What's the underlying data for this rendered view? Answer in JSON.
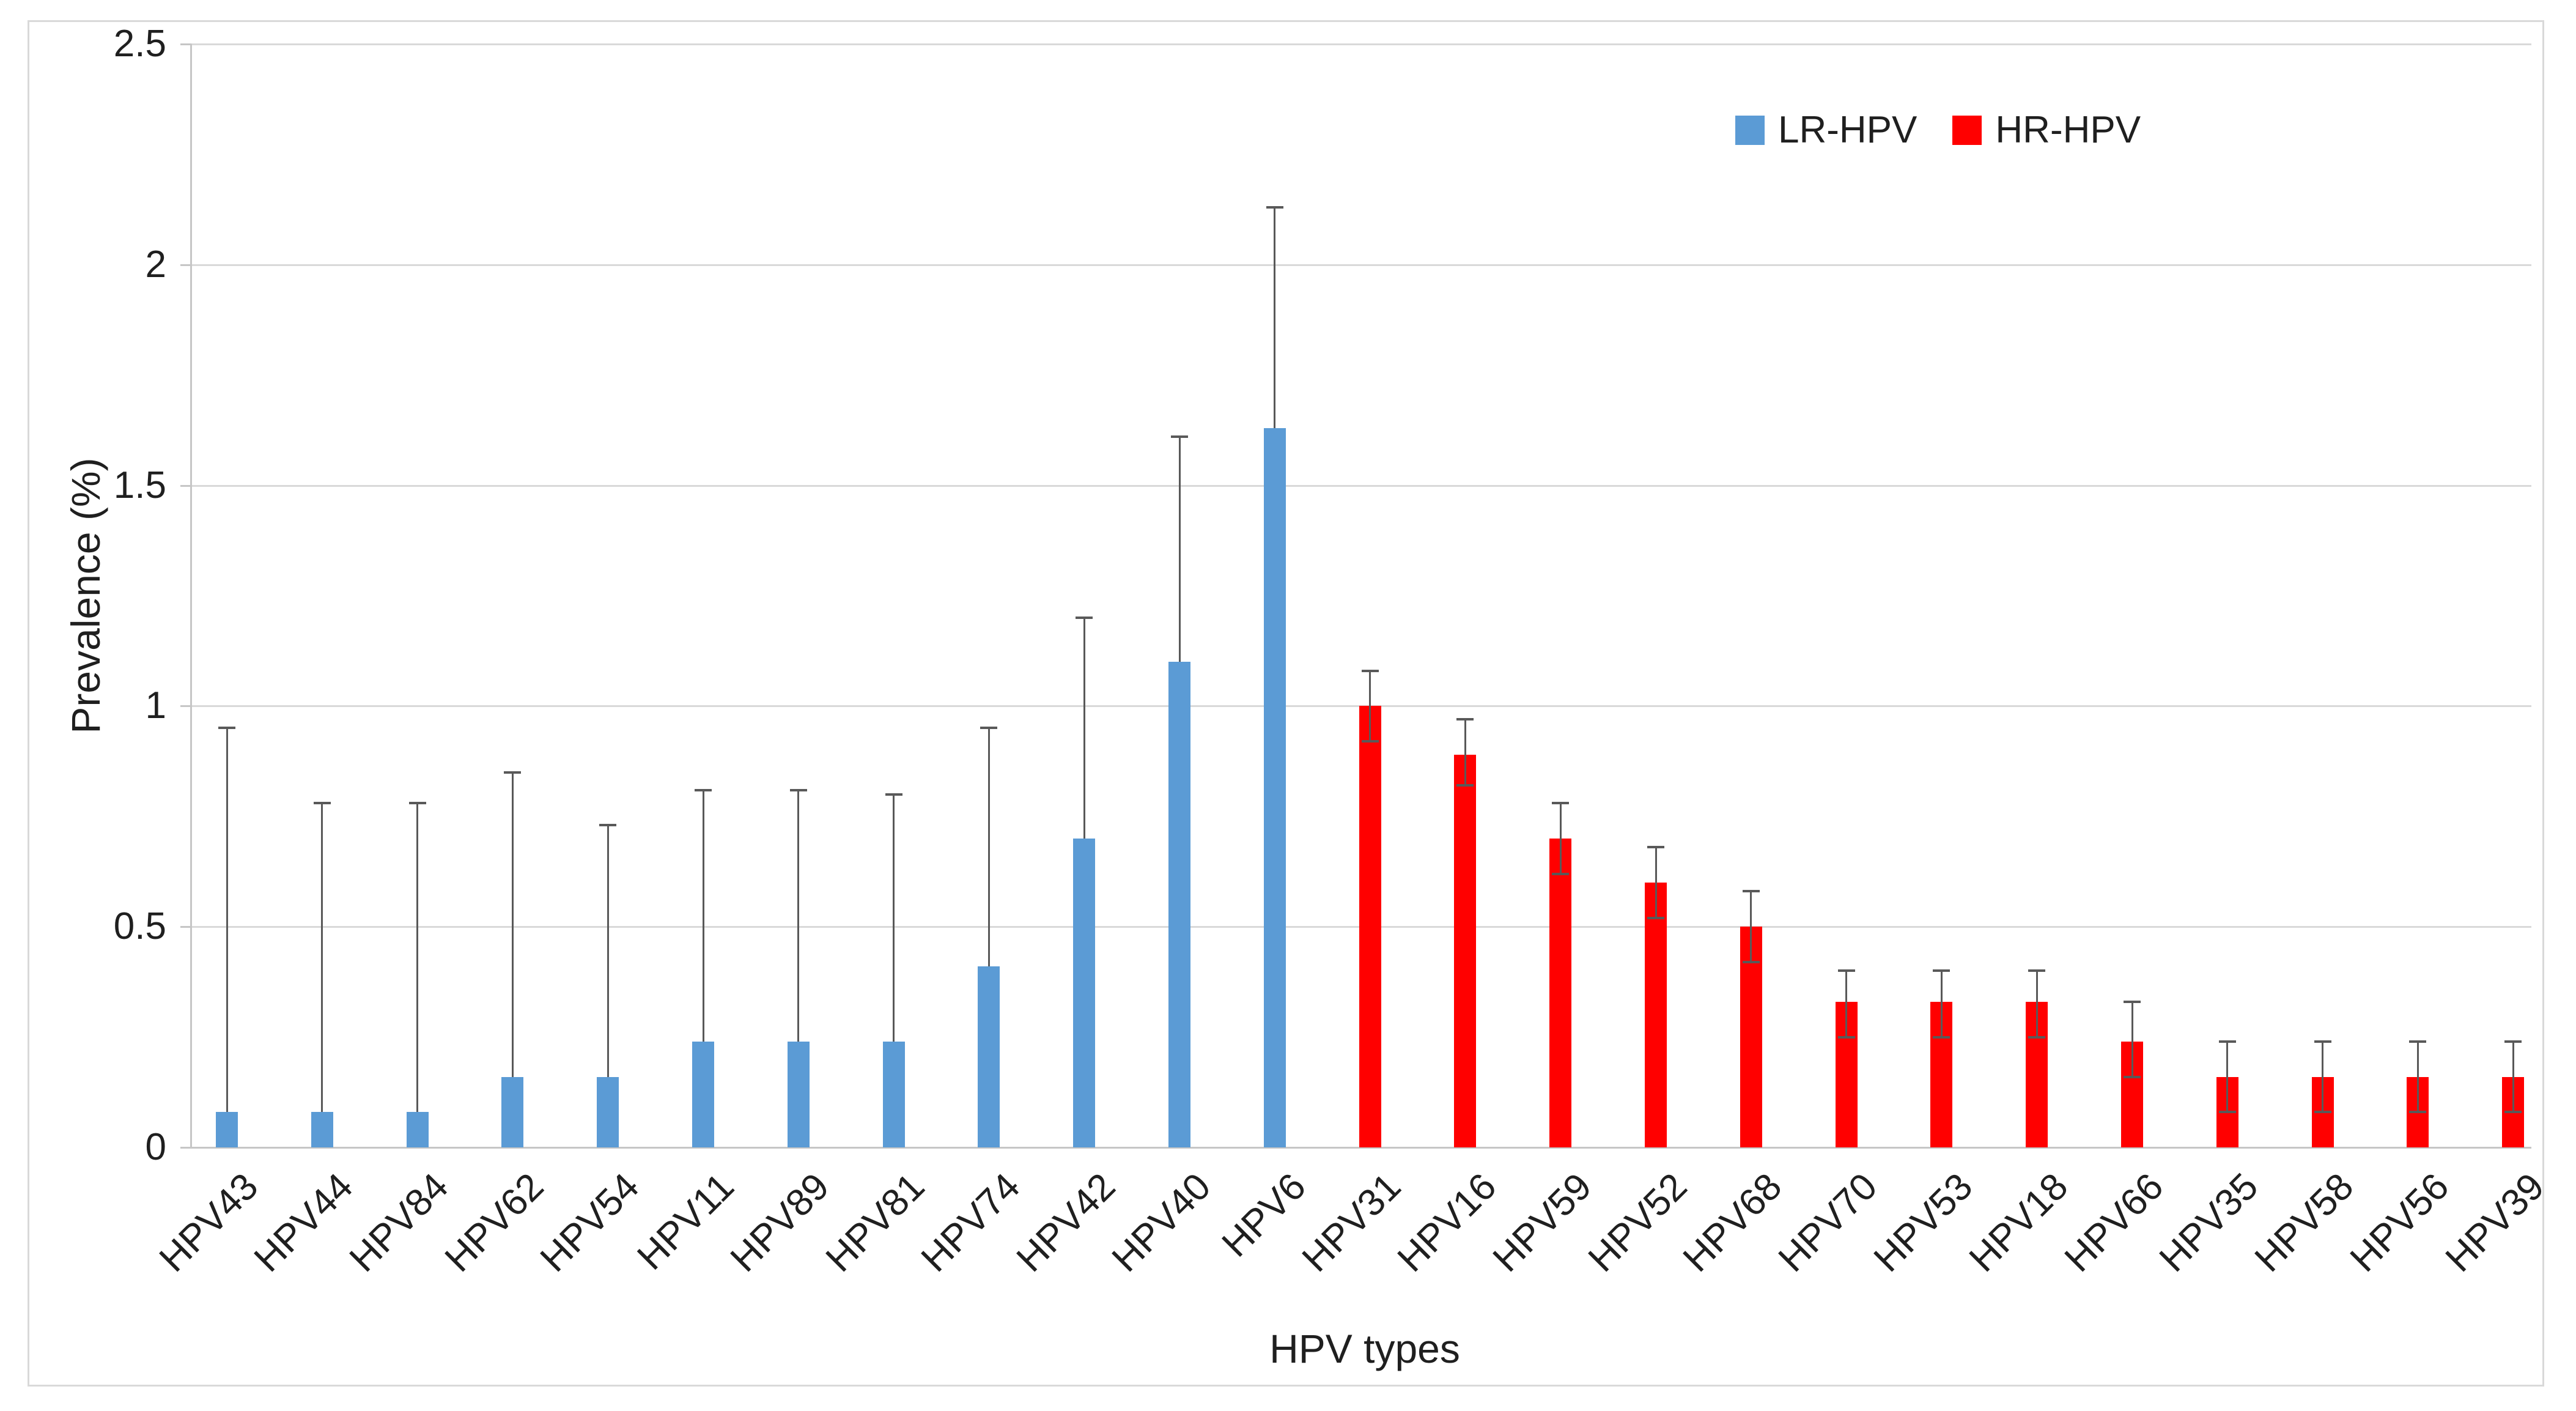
{
  "chart_data": {
    "type": "bar",
    "title": "",
    "xlabel": "HPV types",
    "ylabel": "Prevalence (%)",
    "ylim": [
      0,
      2.5
    ],
    "y_ticks": [
      0,
      0.5,
      1,
      1.5,
      2,
      2.5
    ],
    "grid": true,
    "legend": {
      "position": "top-right",
      "items": [
        {
          "label": "LR-HPV",
          "color": "#5B9BD5"
        },
        {
          "label": "HR-HPV",
          "color": "#FF0000"
        }
      ]
    },
    "error_bar_style": {
      "LR-HPV": "upper only",
      "HR-HPV": "upper and lower"
    },
    "categories": [
      {
        "label": "HPV43",
        "group": "LR-HPV",
        "value": 0.08,
        "ci_low": null,
        "ci_high": 0.95
      },
      {
        "label": "HPV44",
        "group": "LR-HPV",
        "value": 0.08,
        "ci_low": null,
        "ci_high": 0.78
      },
      {
        "label": "HPV84",
        "group": "LR-HPV",
        "value": 0.08,
        "ci_low": null,
        "ci_high": 0.78
      },
      {
        "label": "HPV62",
        "group": "LR-HPV",
        "value": 0.16,
        "ci_low": null,
        "ci_high": 0.85
      },
      {
        "label": "HPV54",
        "group": "LR-HPV",
        "value": 0.16,
        "ci_low": null,
        "ci_high": 0.73
      },
      {
        "label": "HPV11",
        "group": "LR-HPV",
        "value": 0.24,
        "ci_low": null,
        "ci_high": 0.81
      },
      {
        "label": "HPV89",
        "group": "LR-HPV",
        "value": 0.24,
        "ci_low": null,
        "ci_high": 0.81
      },
      {
        "label": "HPV81",
        "group": "LR-HPV",
        "value": 0.24,
        "ci_low": null,
        "ci_high": 0.8
      },
      {
        "label": "HPV74",
        "group": "LR-HPV",
        "value": 0.41,
        "ci_low": null,
        "ci_high": 0.95
      },
      {
        "label": "HPV42",
        "group": "LR-HPV",
        "value": 0.7,
        "ci_low": null,
        "ci_high": 1.2
      },
      {
        "label": "HPV40",
        "group": "LR-HPV",
        "value": 1.1,
        "ci_low": null,
        "ci_high": 1.61
      },
      {
        "label": "HPV6",
        "group": "LR-HPV",
        "value": 1.63,
        "ci_low": null,
        "ci_high": 2.13
      },
      {
        "label": "HPV31",
        "group": "HR-HPV",
        "value": 1.0,
        "ci_low": 0.92,
        "ci_high": 1.08
      },
      {
        "label": "HPV16",
        "group": "HR-HPV",
        "value": 0.89,
        "ci_low": 0.82,
        "ci_high": 0.97
      },
      {
        "label": "HPV59",
        "group": "HR-HPV",
        "value": 0.7,
        "ci_low": 0.62,
        "ci_high": 0.78
      },
      {
        "label": "HPV52",
        "group": "HR-HPV",
        "value": 0.6,
        "ci_low": 0.52,
        "ci_high": 0.68
      },
      {
        "label": "HPV68",
        "group": "HR-HPV",
        "value": 0.5,
        "ci_low": 0.42,
        "ci_high": 0.58
      },
      {
        "label": "HPV70",
        "group": "HR-HPV",
        "value": 0.33,
        "ci_low": 0.25,
        "ci_high": 0.4
      },
      {
        "label": "HPV53",
        "group": "HR-HPV",
        "value": 0.33,
        "ci_low": 0.25,
        "ci_high": 0.4
      },
      {
        "label": "HPV18",
        "group": "HR-HPV",
        "value": 0.33,
        "ci_low": 0.25,
        "ci_high": 0.4
      },
      {
        "label": "HPV66",
        "group": "HR-HPV",
        "value": 0.24,
        "ci_low": 0.16,
        "ci_high": 0.33
      },
      {
        "label": "HPV35",
        "group": "HR-HPV",
        "value": 0.16,
        "ci_low": 0.08,
        "ci_high": 0.24
      },
      {
        "label": "HPV58",
        "group": "HR-HPV",
        "value": 0.16,
        "ci_low": 0.08,
        "ci_high": 0.24
      },
      {
        "label": "HPV56",
        "group": "HR-HPV",
        "value": 0.16,
        "ci_low": 0.08,
        "ci_high": 0.24
      },
      {
        "label": "HPV39",
        "group": "HR-HPV",
        "value": 0.16,
        "ci_low": 0.08,
        "ci_high": 0.24
      }
    ]
  },
  "colors": {
    "lr_bar": "#5B9BD5",
    "hr_bar": "#FF0000",
    "error_bar": "#595959",
    "gridline": "#D9D9D9",
    "axis_line": "#C6C6C6",
    "text": "#1F1F1F",
    "chart_border": "#D9D9D9",
    "background": "#FFFFFF"
  }
}
